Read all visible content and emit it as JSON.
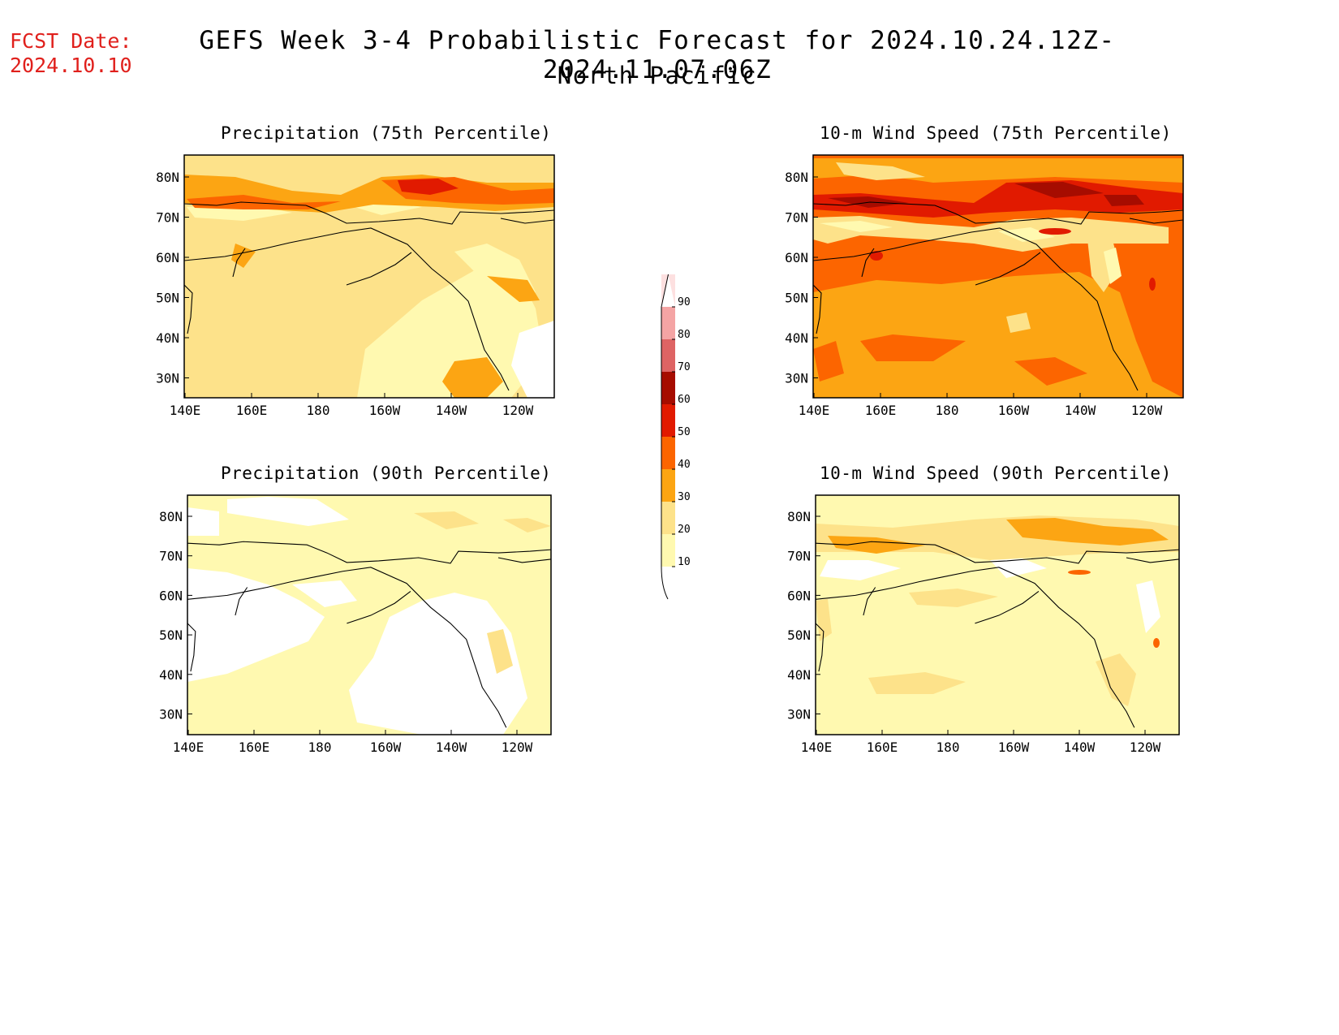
{
  "header": {
    "fcst_label": "FCST Date:",
    "fcst_date": "2024.10.10",
    "title": "GEFS Week 3-4 Probabilistic Forecast for 2024.10.24.12Z-2024.11.07.06Z",
    "subtitle": "North Pacific"
  },
  "axes": {
    "lon_ticks": [
      "140E",
      "160E",
      "180",
      "160W",
      "140W",
      "120W"
    ],
    "lat_ticks": [
      "80N",
      "70N",
      "60N",
      "50N",
      "40N",
      "30N"
    ]
  },
  "legend": {
    "levels": [
      "10",
      "20",
      "30",
      "40",
      "50",
      "60",
      "70",
      "80",
      "90"
    ],
    "colors": [
      "#fff9b0",
      "#fde28a",
      "#fca513",
      "#fc6500",
      "#e11a00",
      "#a60c00",
      "#de6464",
      "#f4a4a4",
      "#fde0e0"
    ]
  },
  "panels": [
    {
      "id": "precip75",
      "title": "Precipitation (75th Percentile)"
    },
    {
      "id": "wind75",
      "title": "10-m Wind Speed (75th Percentile)"
    },
    {
      "id": "precip90",
      "title": "Precipitation (90th Percentile)"
    },
    {
      "id": "wind90",
      "title": "10-m Wind Speed (90th Percentile)"
    }
  ]
}
